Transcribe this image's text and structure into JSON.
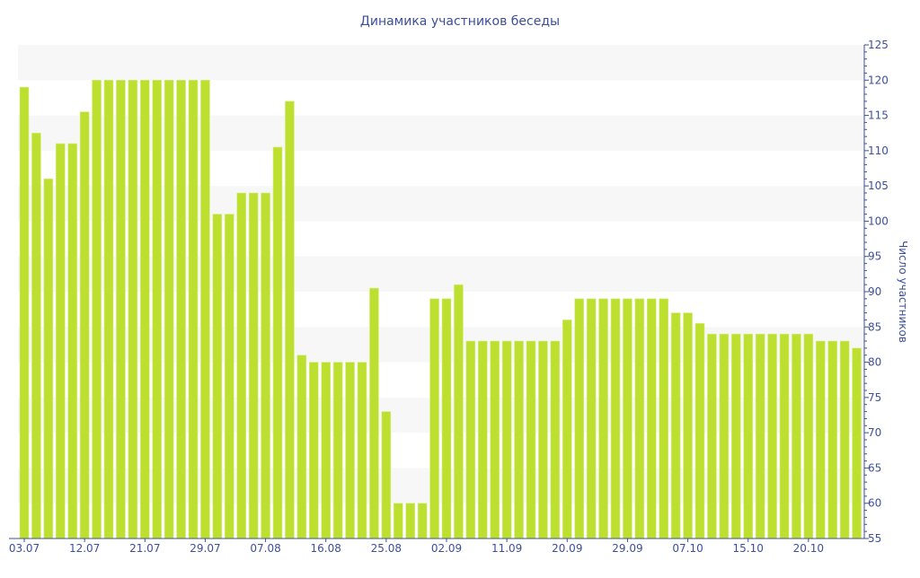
{
  "chart_data": {
    "type": "bar",
    "title": "Динамика участников беседы",
    "xlabel": "",
    "ylabel": "Число участников",
    "ylim": [
      55,
      125
    ],
    "ytick_step": 5,
    "grid": "alternating horizontal bands",
    "y_axis_side": "right",
    "bar_color": "#bde030",
    "axis_color": "#3d4f9a",
    "band_color": "#f7f7f7",
    "x_tick_labels": [
      {
        "index": 0,
        "label": "03.07"
      },
      {
        "index": 5,
        "label": "12.07"
      },
      {
        "index": 10,
        "label": "21.07"
      },
      {
        "index": 15,
        "label": "29.07"
      },
      {
        "index": 20,
        "label": "07.08"
      },
      {
        "index": 25,
        "label": "16.08"
      },
      {
        "index": 30,
        "label": "25.08"
      },
      {
        "index": 35,
        "label": "02.09"
      },
      {
        "index": 40,
        "label": "11.09"
      },
      {
        "index": 45,
        "label": "20.09"
      },
      {
        "index": 50,
        "label": "29.09"
      },
      {
        "index": 55,
        "label": "07.10"
      },
      {
        "index": 60,
        "label": "15.10"
      },
      {
        "index": 65,
        "label": "20.10"
      }
    ],
    "values": [
      119,
      112.5,
      106,
      111,
      111,
      115.5,
      120,
      120,
      120,
      120,
      120,
      120,
      120,
      120,
      120,
      120,
      101,
      101,
      104,
      104,
      104,
      110.5,
      117,
      81,
      80,
      80,
      80,
      80,
      80,
      90.5,
      73,
      60,
      60,
      60,
      89,
      89,
      91,
      83,
      83,
      83,
      83,
      83,
      83,
      83,
      83,
      86,
      89,
      89,
      89,
      89,
      89,
      89,
      89,
      89,
      87,
      87,
      85.5,
      84,
      84,
      84,
      84,
      84,
      84,
      84,
      84,
      84,
      83,
      83,
      83,
      82
    ]
  }
}
